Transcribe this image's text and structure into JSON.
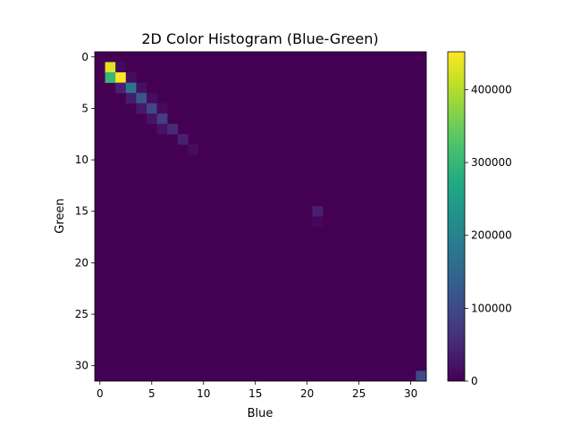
{
  "chart_data": {
    "type": "heatmap",
    "title": "2D Color Histogram (Blue-Green)",
    "xlabel": "Blue",
    "ylabel": "Green",
    "grid_size": 32,
    "x_ticks": [
      0,
      5,
      10,
      15,
      20,
      25,
      30
    ],
    "y_ticks": [
      0,
      5,
      10,
      15,
      20,
      25,
      30
    ],
    "x_tick_labels": [
      "0",
      "5",
      "10",
      "15",
      "20",
      "25",
      "30"
    ],
    "y_tick_labels": [
      "0",
      "5",
      "10",
      "15",
      "20",
      "25",
      "30"
    ],
    "colormap": "viridis",
    "vmin": 0,
    "vmax": 452000,
    "colorbar_ticks": [
      0,
      100000,
      200000,
      300000,
      400000
    ],
    "colorbar_tick_labels": [
      "0",
      "100000",
      "200000",
      "300000",
      "400000"
    ],
    "background_value": 0,
    "cells": [
      {
        "x": 1,
        "y": 1,
        "value": 430000
      },
      {
        "x": 2,
        "y": 1,
        "value": 12000
      },
      {
        "x": 1,
        "y": 2,
        "value": 300000
      },
      {
        "x": 2,
        "y": 2,
        "value": 452000
      },
      {
        "x": 3,
        "y": 2,
        "value": 15000
      },
      {
        "x": 2,
        "y": 3,
        "value": 40000
      },
      {
        "x": 3,
        "y": 3,
        "value": 175000
      },
      {
        "x": 4,
        "y": 3,
        "value": 20000
      },
      {
        "x": 3,
        "y": 4,
        "value": 35000
      },
      {
        "x": 4,
        "y": 4,
        "value": 120000
      },
      {
        "x": 5,
        "y": 4,
        "value": 15000
      },
      {
        "x": 4,
        "y": 5,
        "value": 30000
      },
      {
        "x": 5,
        "y": 5,
        "value": 95000
      },
      {
        "x": 6,
        "y": 5,
        "value": 12000
      },
      {
        "x": 5,
        "y": 6,
        "value": 25000
      },
      {
        "x": 6,
        "y": 6,
        "value": 80000
      },
      {
        "x": 6,
        "y": 7,
        "value": 22000
      },
      {
        "x": 7,
        "y": 7,
        "value": 55000
      },
      {
        "x": 8,
        "y": 8,
        "value": 40000
      },
      {
        "x": 9,
        "y": 9,
        "value": 15000
      },
      {
        "x": 21,
        "y": 15,
        "value": 40000
      },
      {
        "x": 21,
        "y": 16,
        "value": 8000
      },
      {
        "x": 31,
        "y": 31,
        "value": 100000
      }
    ]
  }
}
